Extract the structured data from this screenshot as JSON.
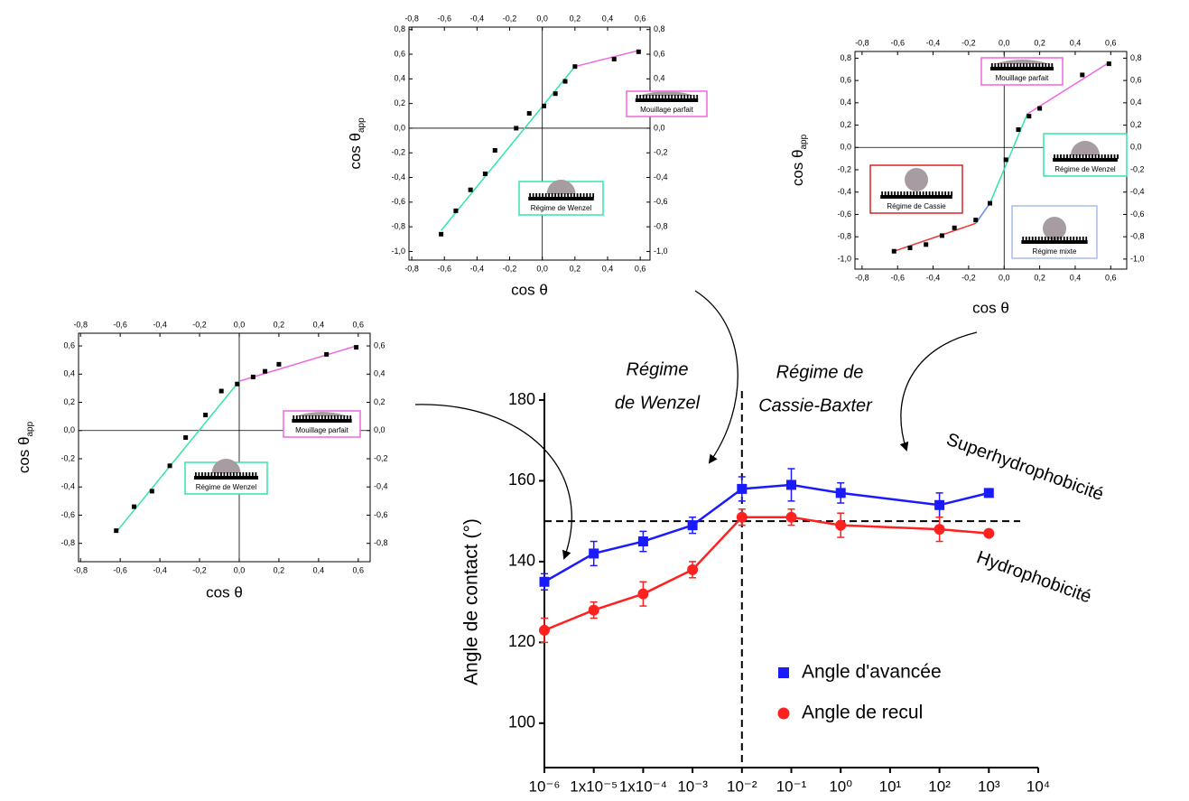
{
  "chart_data": [
    {
      "type": "line",
      "log_x": true,
      "ylabel": "Angle de contact (°)",
      "annotations": {
        "wenzel": [
          "Régime",
          "de Wenzel"
        ],
        "cassie": [
          "Régime de",
          "Cassie-Baxter"
        ],
        "upper": "Superhydrophobicité",
        "lower": "Hydrophobicité"
      },
      "x": [
        1e-06,
        1e-05,
        0.0001,
        0.001,
        0.01,
        0.1,
        1,
        100,
        1000
      ],
      "series": [
        {
          "name": "Angle d'avancée",
          "color": "#1a1aff",
          "marker": "square",
          "values": [
            135,
            142,
            145,
            149,
            158,
            159,
            157,
            154,
            157
          ],
          "errors": [
            2,
            3,
            2.5,
            2,
            3,
            4,
            2.5,
            3,
            0
          ]
        },
        {
          "name": "Angle de recul",
          "color": "#ff2020",
          "marker": "circle",
          "values": [
            123,
            128,
            132,
            138,
            151,
            151,
            149,
            148,
            147
          ],
          "errors": [
            3,
            2,
            3,
            2,
            2,
            2,
            3,
            3,
            0
          ]
        }
      ],
      "hline": 150,
      "vline": 0.01,
      "xlim": [
        1e-06,
        10000
      ],
      "ylim": [
        89,
        180
      ],
      "xticks": [
        {
          "value": 1e-06,
          "label": "10⁻⁶"
        },
        {
          "value": 1e-05,
          "label": "1x10⁻⁵"
        },
        {
          "value": 0.0001,
          "label": "1x10⁻⁴"
        },
        {
          "value": 0.001,
          "label": "10⁻³"
        },
        {
          "value": 0.01,
          "label": "10⁻²"
        },
        {
          "value": 0.1,
          "label": "10⁻¹"
        },
        {
          "value": 1,
          "label": "10⁰"
        },
        {
          "value": 10,
          "label": "10¹"
        },
        {
          "value": 100,
          "label": "10²"
        },
        {
          "value": 1000,
          "label": "10³"
        },
        {
          "value": 10000,
          "label": "10⁴"
        }
      ],
      "yticks": [
        100,
        120,
        140,
        160,
        180
      ]
    },
    {
      "type": "scatter",
      "xlabel": "cos θ",
      "ylabel": "cos θ",
      "ylabel_sub": "app",
      "x": [
        -0.62,
        -0.53,
        -0.44,
        -0.35,
        -0.29,
        -0.16,
        -0.08,
        0.01,
        0.08,
        0.14,
        0.2,
        0.44,
        0.59
      ],
      "values": [
        -0.86,
        -0.67,
        -0.5,
        -0.37,
        -0.18,
        0.0,
        0.12,
        0.18,
        0.28,
        0.38,
        0.5,
        0.56,
        0.62
      ],
      "fits": [
        {
          "color": "#33e6a0",
          "x": [
            -0.62,
            0.2
          ],
          "values": [
            -0.83,
            0.5
          ]
        },
        {
          "color": "#ee66dd",
          "x": [
            0.2,
            0.59
          ],
          "values": [
            0.5,
            0.63
          ]
        }
      ],
      "boxes": [
        {
          "label": "Mouillage parfait",
          "color": "#ee66dd"
        },
        {
          "label": "Régime de Wenzel",
          "color": "#33e6a0"
        }
      ],
      "xlim": [
        -0.817,
        0.66
      ],
      "ylim": [
        -1.07,
        0.82
      ],
      "xticks": [
        {
          "value": -0.8,
          "label": "-0,8"
        },
        {
          "value": -0.6,
          "label": "-0,6"
        },
        {
          "value": -0.4,
          "label": "-0,4"
        },
        {
          "value": -0.2,
          "label": "-0,2"
        },
        {
          "value": 0,
          "label": "0,0"
        },
        {
          "value": 0.2,
          "label": "0,2"
        },
        {
          "value": 0.4,
          "label": "0,4"
        },
        {
          "value": 0.6,
          "label": "0,6"
        }
      ],
      "yticks": [
        {
          "value": -1.0,
          "label": "-1,0"
        },
        {
          "value": -0.8,
          "label": "-0,8"
        },
        {
          "value": -0.6,
          "label": "-0,6"
        },
        {
          "value": -0.4,
          "label": "-0,4"
        },
        {
          "value": -0.2,
          "label": "-0,2"
        },
        {
          "value": 0,
          "label": "0,0"
        },
        {
          "value": 0.2,
          "label": "0,2"
        },
        {
          "value": 0.4,
          "label": "0,4"
        },
        {
          "value": 0.6,
          "label": "0,6"
        },
        {
          "value": 0.8,
          "label": "0,8"
        }
      ]
    },
    {
      "type": "scatter",
      "xlabel": "cos θ",
      "ylabel": "cos θ",
      "ylabel_sub": "app",
      "x": [
        -0.62,
        -0.53,
        -0.44,
        -0.35,
        -0.28,
        -0.16,
        -0.08,
        0.01,
        0.08,
        0.14,
        0.2,
        0.44,
        0.59
      ],
      "values": [
        -0.93,
        -0.9,
        -0.87,
        -0.79,
        -0.72,
        -0.65,
        -0.5,
        -0.11,
        0.16,
        0.28,
        0.35,
        0.65,
        0.75
      ],
      "fits": [
        {
          "color": "#ee3333",
          "x": [
            -0.62,
            -0.16
          ],
          "values": [
            -0.93,
            -0.68
          ]
        },
        {
          "color": "#6688ee",
          "x": [
            -0.16,
            -0.08
          ],
          "values": [
            -0.68,
            -0.5
          ]
        },
        {
          "color": "#33e6a0",
          "x": [
            -0.08,
            0.13
          ],
          "values": [
            -0.5,
            0.3
          ]
        },
        {
          "color": "#ee66dd",
          "x": [
            0.13,
            0.59
          ],
          "values": [
            0.3,
            0.76
          ]
        }
      ],
      "boxes": [
        {
          "label": "Mouillage parfait",
          "color": "#ee66dd"
        },
        {
          "label": "Régime de Wenzel",
          "color": "#33e6a0"
        },
        {
          "label": "Régime de Cassie",
          "color": "#dd2222"
        },
        {
          "label": "Régime mixte",
          "color": "#aabbee"
        }
      ],
      "xlim": [
        -0.84,
        0.69
      ],
      "ylim": [
        -1.09,
        0.86
      ],
      "xticks": [
        {
          "value": -0.8,
          "label": "-0,8"
        },
        {
          "value": -0.6,
          "label": "-0,6"
        },
        {
          "value": -0.4,
          "label": "-0,4"
        },
        {
          "value": -0.2,
          "label": "-0,2"
        },
        {
          "value": 0,
          "label": "0,0"
        },
        {
          "value": 0.2,
          "label": "0,2"
        },
        {
          "value": 0.4,
          "label": "0,4"
        },
        {
          "value": 0.6,
          "label": "0,6"
        }
      ],
      "yticks": [
        {
          "value": -1.0,
          "label": "-1,0"
        },
        {
          "value": -0.8,
          "label": "-0,8"
        },
        {
          "value": -0.6,
          "label": "-0,6"
        },
        {
          "value": -0.4,
          "label": "-0,4"
        },
        {
          "value": -0.2,
          "label": "-0,2"
        },
        {
          "value": 0,
          "label": "0,0"
        },
        {
          "value": 0.2,
          "label": "0,2"
        },
        {
          "value": 0.4,
          "label": "0,4"
        },
        {
          "value": 0.6,
          "label": "0,6"
        },
        {
          "value": 0.8,
          "label": "0,8"
        }
      ]
    },
    {
      "type": "scatter",
      "xlabel": "cos θ",
      "ylabel": "cos θ",
      "ylabel_sub": "app",
      "x": [
        -0.62,
        -0.53,
        -0.44,
        -0.35,
        -0.27,
        -0.17,
        -0.09,
        -0.01,
        0.07,
        0.13,
        0.2,
        0.44,
        0.59
      ],
      "values": [
        -0.71,
        -0.54,
        -0.43,
        -0.25,
        -0.05,
        0.11,
        0.28,
        0.33,
        0.38,
        0.42,
        0.47,
        0.54,
        0.59
      ],
      "fits": [
        {
          "color": "#33e6a0",
          "x": [
            -0.62,
            0.0
          ],
          "values": [
            -0.72,
            0.35
          ]
        },
        {
          "color": "#ee66dd",
          "x": [
            0.0,
            0.59
          ],
          "values": [
            0.35,
            0.6
          ]
        }
      ],
      "boxes": [
        {
          "label": "Mouillage parfait",
          "color": "#ee66dd"
        },
        {
          "label": "Régime de Wenzel",
          "color": "#33e6a0"
        }
      ],
      "xlim": [
        -0.81,
        0.66
      ],
      "ylim": [
        -0.93,
        0.69
      ],
      "xticks": [
        {
          "value": -0.8,
          "label": "-0,8"
        },
        {
          "value": -0.6,
          "label": "-0,6"
        },
        {
          "value": -0.4,
          "label": "-0,4"
        },
        {
          "value": -0.2,
          "label": "-0,2"
        },
        {
          "value": 0,
          "label": "0,0"
        },
        {
          "value": 0.2,
          "label": "0,2"
        },
        {
          "value": 0.4,
          "label": "0,4"
        },
        {
          "value": 0.6,
          "label": "0,6"
        }
      ],
      "yticks": [
        {
          "value": -0.8,
          "label": "-0,8"
        },
        {
          "value": -0.6,
          "label": "-0,6"
        },
        {
          "value": -0.4,
          "label": "-0,4"
        },
        {
          "value": -0.2,
          "label": "-0,2"
        },
        {
          "value": 0,
          "label": "0,0"
        },
        {
          "value": 0.2,
          "label": "0,2"
        },
        {
          "value": 0.4,
          "label": "0,4"
        },
        {
          "value": 0.6,
          "label": "0,6"
        }
      ]
    }
  ]
}
